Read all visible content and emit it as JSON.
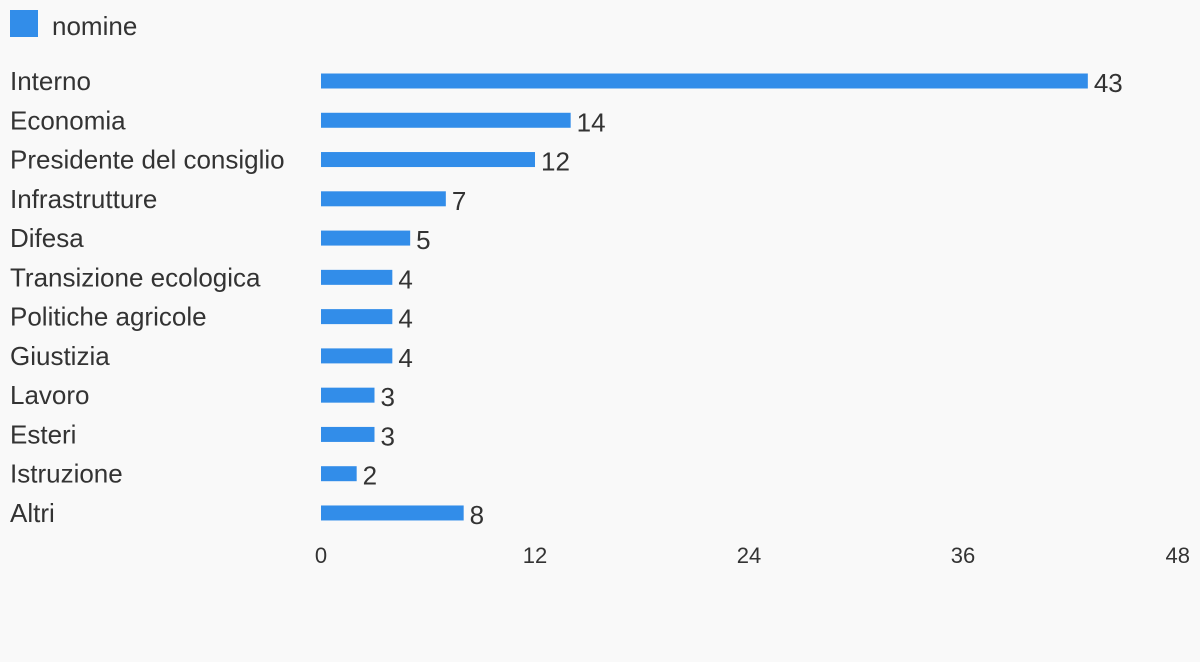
{
  "chart_data": {
    "type": "bar",
    "orientation": "horizontal",
    "legend": {
      "position": "top-left",
      "entries": [
        {
          "name": "nomine",
          "color": "#328de9"
        }
      ]
    },
    "categories": [
      "Interno",
      "Economia",
      "Presidente del consiglio",
      "Infrastrutture",
      "Difesa",
      "Transizione ecologica",
      "Politiche agricole",
      "Giustizia",
      "Lavoro",
      "Esteri",
      "Istruzione",
      "Altri"
    ],
    "series": [
      {
        "name": "nomine",
        "color": "#328de9",
        "values": [
          43,
          14,
          12,
          7,
          5,
          4,
          4,
          4,
          3,
          3,
          2,
          8
        ]
      }
    ],
    "xlim": [
      0,
      48
    ],
    "xticks": [
      "0",
      "12",
      "24",
      "36",
      "48"
    ],
    "grid": false,
    "data_labels": true
  }
}
